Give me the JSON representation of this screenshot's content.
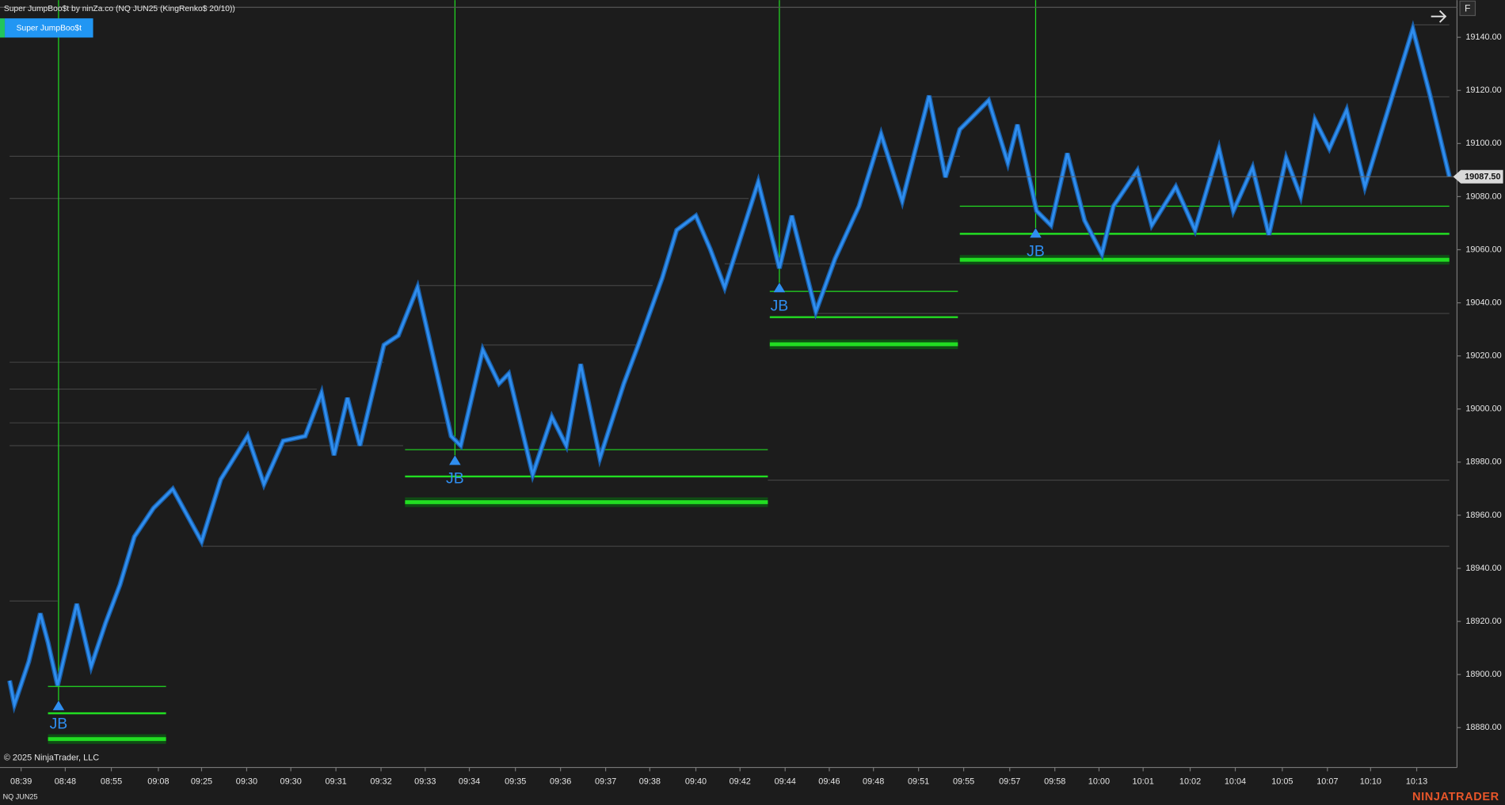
{
  "chart_data": {
    "type": "renko",
    "title": "Super JumpBoo$t by ninZa.co (NQ JUN25 (KingRenko$ 20/10))",
    "indicator_label": "Super JumpBoo$t",
    "top_button": "F",
    "copyright": "© 2025 NinjaTrader, LLC",
    "instrument": "NQ JUN25",
    "brand": "NINJATRADER",
    "color": "#2f8ef0",
    "signal_color": "#2f8ef0",
    "level_color": "#22dd22",
    "reference_color": "#4a4a4a",
    "grid": false,
    "ylim": [
      18865,
      19154
    ],
    "yticks": [
      {
        "value": 18880,
        "label": "18880.00"
      },
      {
        "value": 18900,
        "label": "18900.00"
      },
      {
        "value": 18920,
        "label": "18920.00"
      },
      {
        "value": 18940,
        "label": "18940.00"
      },
      {
        "value": 18960,
        "label": "18960.00"
      },
      {
        "value": 18980,
        "label": "18980.00"
      },
      {
        "value": 19000,
        "label": "19000.00"
      },
      {
        "value": 19020,
        "label": "19020.00"
      },
      {
        "value": 19040,
        "label": "19040.00"
      },
      {
        "value": 19060,
        "label": "19060.00"
      },
      {
        "value": 19080,
        "label": "19080.00"
      },
      {
        "value": 19100,
        "label": "19100.00"
      },
      {
        "value": 19120,
        "label": "19120.00"
      },
      {
        "value": 19140,
        "label": "19140.00"
      }
    ],
    "xlim": [
      0,
      1518
    ],
    "xticks": [
      {
        "value": 22,
        "label": "08:39"
      },
      {
        "value": 68,
        "label": "08:48"
      },
      {
        "value": 116,
        "label": "08:55"
      },
      {
        "value": 165,
        "label": "09:08"
      },
      {
        "value": 210,
        "label": "09:25"
      },
      {
        "value": 257,
        "label": "09:30"
      },
      {
        "value": 303,
        "label": "09:30"
      },
      {
        "value": 350,
        "label": "09:31"
      },
      {
        "value": 397,
        "label": "09:32"
      },
      {
        "value": 443,
        "label": "09:33"
      },
      {
        "value": 489,
        "label": "09:34"
      },
      {
        "value": 537,
        "label": "09:35"
      },
      {
        "value": 584,
        "label": "09:36"
      },
      {
        "value": 631,
        "label": "09:37"
      },
      {
        "value": 677,
        "label": "09:38"
      },
      {
        "value": 725,
        "label": "09:40"
      },
      {
        "value": 771,
        "label": "09:42"
      },
      {
        "value": 818,
        "label": "09:44"
      },
      {
        "value": 864,
        "label": "09:46"
      },
      {
        "value": 910,
        "label": "09:48"
      },
      {
        "value": 957,
        "label": "09:51"
      },
      {
        "value": 1004,
        "label": "09:55"
      },
      {
        "value": 1052,
        "label": "09:57"
      },
      {
        "value": 1099,
        "label": "09:58"
      },
      {
        "value": 1145,
        "label": "10:00"
      },
      {
        "value": 1191,
        "label": "10:01"
      },
      {
        "value": 1240,
        "label": "10:02"
      },
      {
        "value": 1287,
        "label": "10:04"
      },
      {
        "value": 1336,
        "label": "10:05"
      },
      {
        "value": 1383,
        "label": "10:07"
      },
      {
        "value": 1428,
        "label": "10:10"
      },
      {
        "value": 1476,
        "label": "10:13"
      }
    ],
    "x": [
      10,
      15,
      30,
      42,
      50,
      60,
      80,
      95,
      110,
      125,
      140,
      160,
      180,
      210,
      230,
      258,
      275,
      295,
      318,
      335,
      348,
      362,
      375,
      400,
      415,
      435,
      470,
      480,
      503,
      520,
      530,
      555,
      575,
      590,
      605,
      625,
      650,
      665,
      690,
      705,
      725,
      740,
      755,
      790,
      800,
      812,
      825,
      850,
      870,
      895,
      918,
      940,
      968,
      985,
      1000,
      1010,
      1030,
      1050,
      1060,
      1080,
      1095,
      1112,
      1130,
      1148,
      1160,
      1185,
      1200,
      1225,
      1245,
      1270,
      1285,
      1305,
      1322,
      1340,
      1355,
      1370,
      1385,
      1403,
      1422,
      1440,
      1472,
      1490,
      1510
    ],
    "values": [
      18897.7,
      18888.7,
      18904.9,
      18923.0,
      18912.1,
      18895.9,
      18926.6,
      18903.1,
      18919.4,
      18933.8,
      18951.9,
      18962.7,
      18969.9,
      18950.1,
      18973.5,
      18989.8,
      18971.7,
      18988.0,
      18989.8,
      19006.0,
      18982.6,
      19004.2,
      18986.2,
      19024.1,
      19027.7,
      19045.8,
      18989.8,
      18986.2,
      19022.3,
      19009.6,
      19013.3,
      18975.3,
      18997.0,
      18986.2,
      19016.9,
      18981.5,
      19009.6,
      19024.1,
      19049.4,
      19067.4,
      19072.8,
      19060.2,
      19045.8,
      19085.5,
      19071.0,
      19053.0,
      19072.8,
      19036.7,
      19056.6,
      19076.4,
      19103.5,
      19078.3,
      19118.0,
      19087.3,
      19105.3,
      19108.9,
      19116.2,
      19092.7,
      19107.1,
      19074.6,
      19069.2,
      19096.3,
      19071.0,
      19058.4,
      19076.4,
      19089.8,
      19069.2,
      19083.7,
      19067.4,
      19098.1,
      19074.6,
      19090.9,
      19065.6,
      19094.5,
      19080.1,
      19108.9,
      19098.1,
      19112.6,
      19083.7,
      19105.3,
      19143.2,
      19118.0,
      19087.5
    ],
    "last_price": {
      "value": 19087.5,
      "label": "19087.50"
    },
    "signals": [
      {
        "label": "JB",
        "x": 61,
        "value": 18888.0,
        "level_x": [
          50,
          173
        ],
        "levels": [
          18895.5,
          18885.4,
          18875.7
        ]
      },
      {
        "label": "JB",
        "x": 474,
        "value": 18980.4,
        "level_x": [
          422,
          800
        ],
        "levels": [
          18984.7,
          18974.6,
          18964.9
        ]
      },
      {
        "label": "JB",
        "x": 812,
        "value": 19045.4,
        "level_x": [
          802,
          998
        ],
        "levels": [
          19044.3,
          19034.6,
          19024.4
        ]
      },
      {
        "label": "JB",
        "x": 1079,
        "value": 19066.0,
        "level_x": [
          1000,
          1510
        ],
        "levels": [
          19076.4,
          19066.0,
          19056.2
        ]
      }
    ],
    "reference_lines": [
      {
        "x": [
          10,
          1000
        ],
        "value": 19095.2
      },
      {
        "x": [
          10,
          780
        ],
        "value": 19079.3
      },
      {
        "x": [
          10,
          400
        ],
        "value": 19017.6
      },
      {
        "x": [
          10,
          330
        ],
        "value": 19007.5
      },
      {
        "x": [
          10,
          470
        ],
        "value": 18994.8
      },
      {
        "x": [
          10,
          420
        ],
        "value": 18986.2
      },
      {
        "x": [
          210,
          1510
        ],
        "value": 18948.3
      },
      {
        "x": [
          10,
          60
        ],
        "value": 18927.7
      },
      {
        "x": [
          800,
          1510
        ],
        "value": 18973.2
      },
      {
        "x": [
          850,
          1510
        ],
        "value": 19036.0
      },
      {
        "x": [
          435,
          680
        ],
        "value": 19046.5
      },
      {
        "x": [
          503,
          665
        ],
        "value": 19024.1
      },
      {
        "x": [
          968,
          1510
        ],
        "value": 19117.6
      },
      {
        "x": [
          1472,
          1510
        ],
        "value": 19144.7
      },
      {
        "x": [
          755,
          1510
        ],
        "value": 19054.7
      }
    ]
  }
}
